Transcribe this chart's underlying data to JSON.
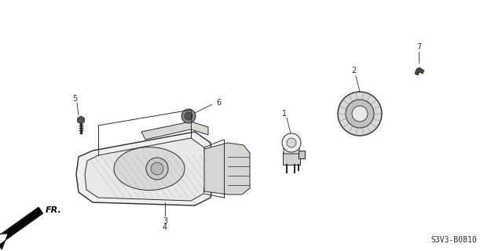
{
  "bg_color": "#ffffff",
  "line_color": "#2a2a2a",
  "label_color": "#2a2a2a",
  "diagram_code": "S3V3-B0810",
  "fr_label": "FR.",
  "fig_width": 6.39,
  "fig_height": 3.2,
  "dpi": 100
}
